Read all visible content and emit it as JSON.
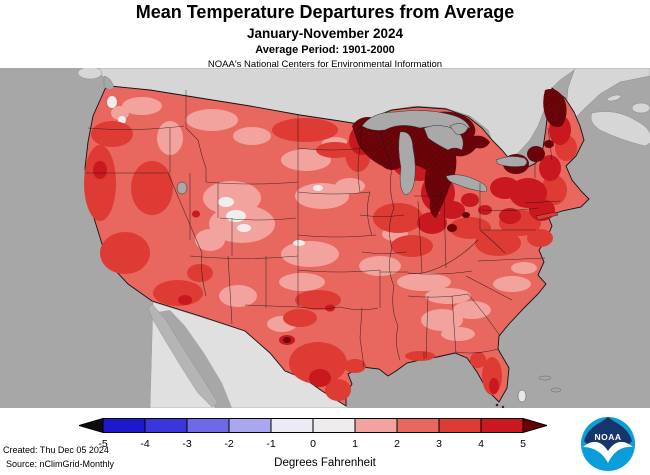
{
  "header": {
    "title": "Mean Temperature Departures from Average",
    "subtitle": "January-November 2024",
    "average_period": "Average Period: 1901-2000",
    "organization": "NOAA's National Centers for Environmental Information"
  },
  "map": {
    "palette": {
      "ocean": "#a7a7a7",
      "canada_land": "#d6d6d6",
      "mexico_land": "#e0e0e0",
      "baja_land": "#b5b5b5",
      "lake_fill": "#a9a9a9",
      "dep_0_1": "#f1eded",
      "dep_1_2": "#f2a39e",
      "dep_2_3": "#e8675f",
      "dep_3_4": "#dd3b33",
      "dep_4_5": "#c9181f",
      "dep_gt_5": "#6d040a"
    }
  },
  "legend": {
    "unit_label": "Degrees Fahrenheit",
    "ticks": [
      "-5",
      "-4",
      "-3",
      "-2",
      "-1",
      "0",
      "1",
      "2",
      "3",
      "4",
      "5"
    ],
    "segments": [
      "#1c18cb",
      "#3a36da",
      "#6e69e4",
      "#aaa6ef",
      "#eceaf4",
      "#eeecec",
      "#f2a39e",
      "#e8675f",
      "#dd3b33",
      "#c9181f"
    ],
    "left_arrow": "#0d0d0d",
    "right_arrow": "#670007"
  },
  "footer": {
    "created": "Created: Thu Dec 05 2024",
    "source": "Source: nClimGrid-Monthly"
  },
  "logo": {
    "text": "NOAA",
    "navy": "#16356c",
    "blue": "#0b9dd9"
  }
}
